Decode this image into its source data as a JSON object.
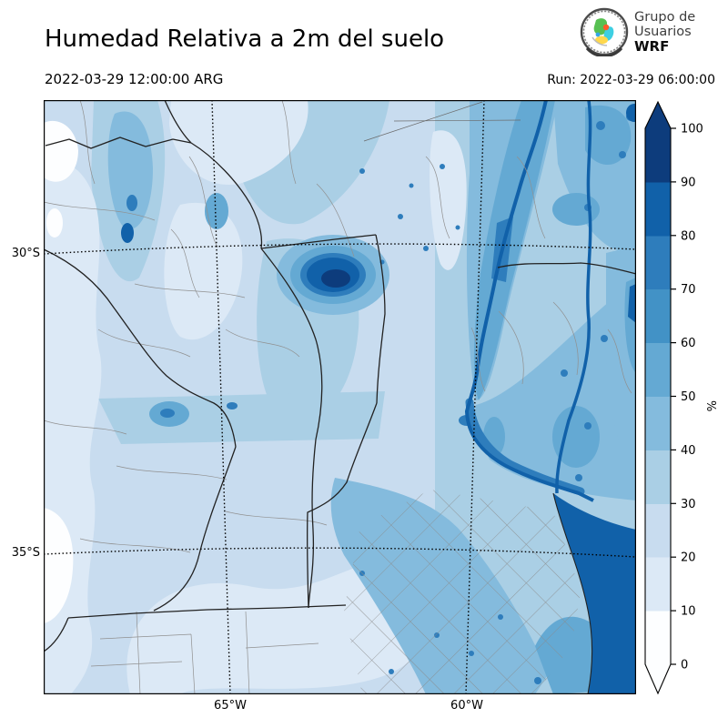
{
  "header": {
    "title": "Humedad Relativa a 2m del suelo",
    "valid_time": "2022-03-29 12:00:00 ARG",
    "run_label": "Run: 2022-03-29 06:00:00",
    "logo": {
      "line1": "Grupo de",
      "line2": "Usuarios",
      "line3": "WRF"
    }
  },
  "axes": {
    "lat": [
      {
        "text": "30°S"
      },
      {
        "text": "35°S"
      }
    ],
    "lon": [
      {
        "text": "65°W"
      },
      {
        "text": "60°W"
      }
    ]
  },
  "colorbar": {
    "unit": "%",
    "levels": [
      0,
      10,
      20,
      30,
      40,
      50,
      60,
      70,
      80,
      90,
      100
    ],
    "tick_labels": [
      "0",
      "10",
      "20",
      "30",
      "40",
      "50",
      "60",
      "70",
      "80",
      "90",
      "100"
    ],
    "colors": [
      "#fdfeff",
      "#dce9f6",
      "#c8dcef",
      "#aacfe5",
      "#84bbdd",
      "#64a9d3",
      "#4292c6",
      "#2e7dbc",
      "#1161a9",
      "#0d3c7c"
    ],
    "arrow_top_color": "#0d3c7c",
    "arrow_bottom_color": "#fdfeff"
  },
  "field_palette": {
    "humidity_0_10": "#fdfeff",
    "humidity_10_20": "#dce9f6",
    "humidity_20_30": "#c8dcef",
    "humidity_30_40": "#aacfe5",
    "humidity_40_50": "#84bbdd",
    "humidity_50_60": "#64a9d3",
    "humidity_60_70": "#4292c6",
    "humidity_70_80": "#2e7dbc",
    "humidity_80_90": "#1161a9",
    "humidity_90_100": "#0d3c7c"
  }
}
